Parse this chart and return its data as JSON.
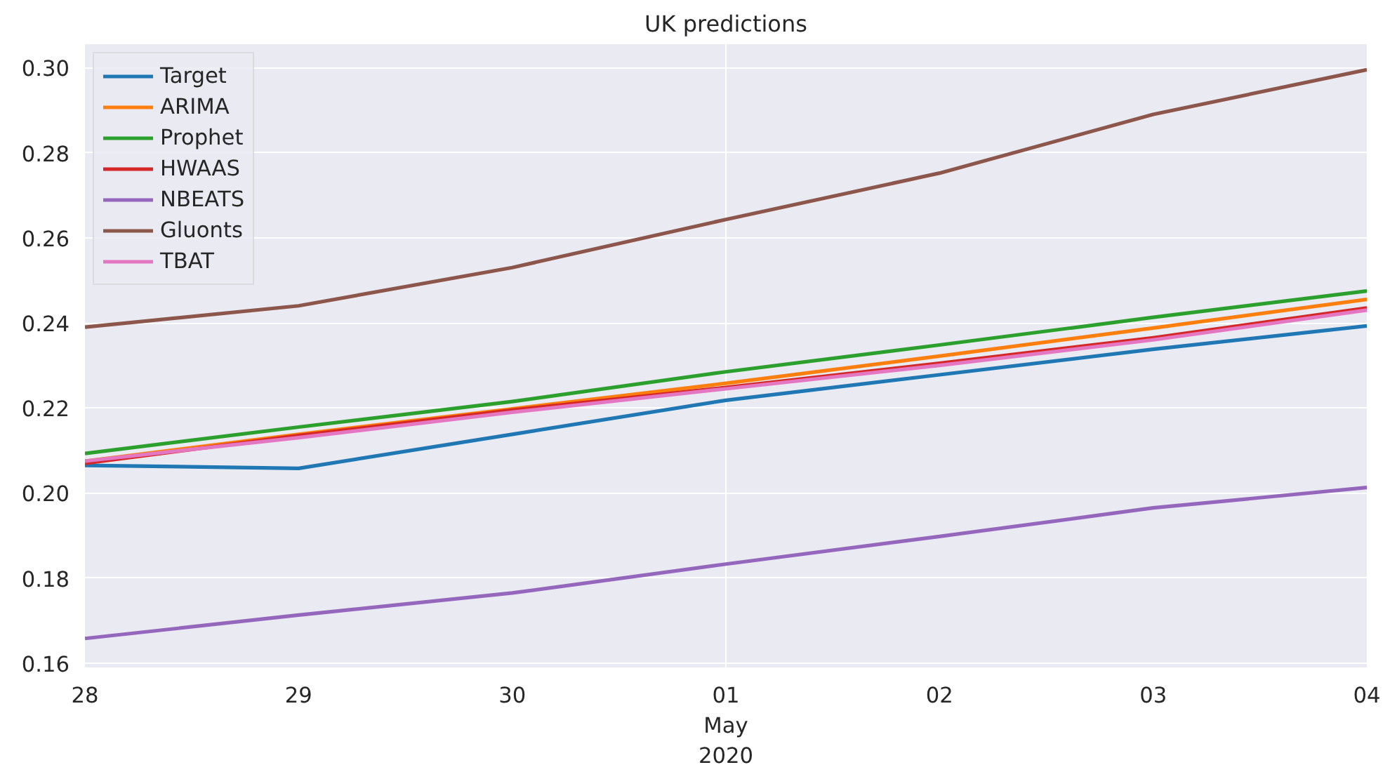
{
  "chart_data": {
    "type": "line",
    "title": "UK predictions",
    "x": [
      "2020-04-28",
      "2020-04-29",
      "2020-04-30",
      "2020-05-01",
      "2020-05-02",
      "2020-05-03",
      "2020-05-04"
    ],
    "xlim": [
      "2020-04-28",
      "2020-05-04"
    ],
    "xticks": [
      {
        "value": "2020-04-28",
        "label": "28"
      },
      {
        "value": "2020-04-29",
        "label": "29"
      },
      {
        "value": "2020-04-30",
        "label": "30"
      },
      {
        "value": "2020-05-01",
        "label": "01\nMay\n2020"
      },
      {
        "value": "2020-05-02",
        "label": "02"
      },
      {
        "value": "2020-05-03",
        "label": "03"
      },
      {
        "value": "2020-05-04",
        "label": "04"
      }
    ],
    "ylim": [
      0.159,
      0.3055
    ],
    "yticks": [
      {
        "value": 0.16,
        "label": "0.16"
      },
      {
        "value": 0.18,
        "label": "0.18"
      },
      {
        "value": 0.2,
        "label": "0.20"
      },
      {
        "value": 0.22,
        "label": "0.22"
      },
      {
        "value": 0.24,
        "label": "0.24"
      },
      {
        "value": 0.26,
        "label": "0.26"
      },
      {
        "value": 0.28,
        "label": "0.28"
      },
      {
        "value": 0.3,
        "label": "0.30"
      }
    ],
    "grid": "y",
    "legend": "top left",
    "ref_lines": [
      {
        "axis": "x",
        "value": "2020-05-01",
        "color": "#ffffff"
      }
    ],
    "series": [
      {
        "name": "Target",
        "color": "#1f77b4",
        "values": [
          0.2065,
          0.2058,
          0.2138,
          0.2218,
          0.2278,
          0.2338,
          0.2393
        ]
      },
      {
        "name": "ARIMA",
        "color": "#ff7f0e",
        "values": [
          0.2075,
          0.2138,
          0.2198,
          0.2258,
          0.2322,
          0.2388,
          0.2455
        ]
      },
      {
        "name": "Prophet",
        "color": "#2ca02c",
        "values": [
          0.2093,
          0.2155,
          0.2215,
          0.2285,
          0.2348,
          0.2413,
          0.2475
        ]
      },
      {
        "name": "HWAAS",
        "color": "#d62728",
        "values": [
          0.207,
          0.2135,
          0.2195,
          0.2248,
          0.2305,
          0.2365,
          0.2435
        ]
      },
      {
        "name": "NBEATS",
        "color": "#9467bd",
        "values": [
          0.1658,
          0.1713,
          0.1765,
          0.1833,
          0.1898,
          0.1965,
          0.2013
        ]
      },
      {
        "name": "Gluonts",
        "color": "#8c564b",
        "values": [
          0.239,
          0.244,
          0.253,
          0.2643,
          0.2752,
          0.289,
          0.2995
        ]
      },
      {
        "name": "TBAT",
        "color": "#e377c2",
        "values": [
          0.2075,
          0.213,
          0.219,
          0.2245,
          0.23,
          0.236,
          0.243
        ]
      }
    ]
  }
}
